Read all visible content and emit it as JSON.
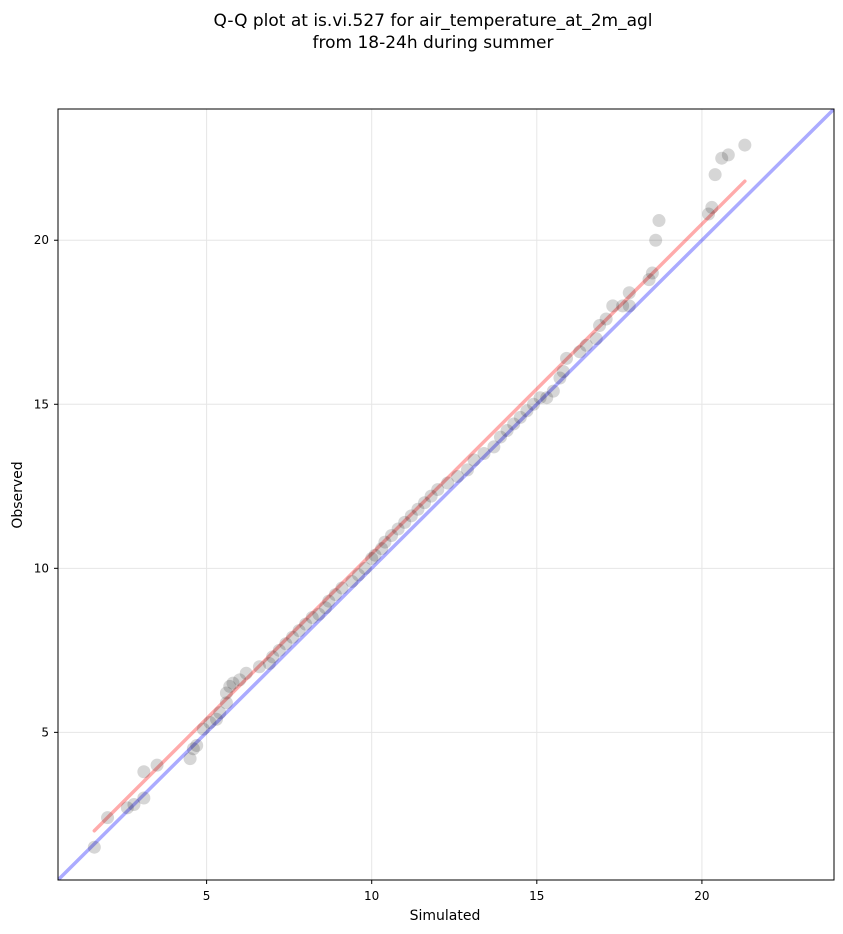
{
  "chart_data": {
    "type": "scatter",
    "title": "Q-Q plot at is.vi.527 for air_temperature_at_2m_agl",
    "subtitle": "from 18-24h during summer",
    "xlabel": "Simulated",
    "ylabel": "Observed",
    "xlim": [
      0.5,
      24.0
    ],
    "ylim": [
      0.5,
      24.0
    ],
    "xticks": [
      5,
      10,
      15,
      20
    ],
    "yticks": [
      5,
      10,
      15,
      20
    ],
    "grid": true,
    "colors": {
      "points": "#000000",
      "identity_line": "#0000ff",
      "fit_line": "#ff0000",
      "grid": "#e6e6e6"
    },
    "lines": [
      {
        "role": "identity",
        "x": [
          0.5,
          24.0
        ],
        "y": [
          0.5,
          24.0
        ]
      },
      {
        "role": "fit",
        "x": [
          1.6,
          21.3
        ],
        "y": [
          2.0,
          21.8
        ]
      }
    ],
    "points": [
      [
        1.6,
        1.5
      ],
      [
        2.0,
        2.4
      ],
      [
        2.6,
        2.7
      ],
      [
        2.8,
        2.8
      ],
      [
        3.1,
        3.0
      ],
      [
        3.1,
        3.8
      ],
      [
        3.5,
        4.0
      ],
      [
        4.5,
        4.2
      ],
      [
        4.6,
        4.5
      ],
      [
        4.7,
        4.6
      ],
      [
        4.9,
        5.1
      ],
      [
        5.1,
        5.3
      ],
      [
        5.3,
        5.4
      ],
      [
        5.4,
        5.6
      ],
      [
        5.6,
        5.9
      ],
      [
        5.6,
        6.2
      ],
      [
        5.7,
        6.4
      ],
      [
        5.8,
        6.5
      ],
      [
        6.0,
        6.6
      ],
      [
        6.2,
        6.8
      ],
      [
        6.6,
        7.0
      ],
      [
        6.9,
        7.1
      ],
      [
        7.0,
        7.3
      ],
      [
        7.2,
        7.5
      ],
      [
        7.4,
        7.7
      ],
      [
        7.6,
        7.9
      ],
      [
        7.8,
        8.1
      ],
      [
        8.0,
        8.3
      ],
      [
        8.2,
        8.5
      ],
      [
        8.4,
        8.6
      ],
      [
        8.6,
        8.8
      ],
      [
        8.7,
        9.0
      ],
      [
        8.9,
        9.2
      ],
      [
        9.1,
        9.4
      ],
      [
        9.4,
        9.6
      ],
      [
        9.6,
        9.8
      ],
      [
        9.8,
        10.0
      ],
      [
        10.0,
        10.3
      ],
      [
        10.1,
        10.4
      ],
      [
        10.3,
        10.6
      ],
      [
        10.4,
        10.8
      ],
      [
        10.6,
        11.0
      ],
      [
        10.8,
        11.2
      ],
      [
        11.0,
        11.4
      ],
      [
        11.2,
        11.6
      ],
      [
        11.4,
        11.8
      ],
      [
        11.6,
        12.0
      ],
      [
        11.8,
        12.2
      ],
      [
        12.0,
        12.4
      ],
      [
        12.3,
        12.6
      ],
      [
        12.6,
        12.8
      ],
      [
        12.9,
        13.0
      ],
      [
        13.1,
        13.3
      ],
      [
        13.4,
        13.5
      ],
      [
        13.7,
        13.7
      ],
      [
        13.9,
        14.0
      ],
      [
        14.1,
        14.2
      ],
      [
        14.3,
        14.4
      ],
      [
        14.5,
        14.6
      ],
      [
        14.7,
        14.8
      ],
      [
        14.9,
        15.0
      ],
      [
        15.1,
        15.2
      ],
      [
        15.3,
        15.2
      ],
      [
        15.5,
        15.4
      ],
      [
        15.7,
        15.8
      ],
      [
        15.8,
        16.0
      ],
      [
        15.9,
        16.4
      ],
      [
        16.3,
        16.6
      ],
      [
        16.5,
        16.8
      ],
      [
        16.8,
        17.0
      ],
      [
        16.9,
        17.4
      ],
      [
        17.1,
        17.6
      ],
      [
        17.3,
        18.0
      ],
      [
        17.6,
        18.0
      ],
      [
        17.8,
        18.0
      ],
      [
        17.8,
        18.4
      ],
      [
        18.4,
        18.8
      ],
      [
        18.5,
        19.0
      ],
      [
        18.6,
        20.0
      ],
      [
        18.7,
        20.6
      ],
      [
        20.2,
        20.8
      ],
      [
        20.3,
        21.0
      ],
      [
        20.4,
        22.0
      ],
      [
        20.6,
        22.5
      ],
      [
        20.8,
        22.6
      ],
      [
        21.3,
        22.9
      ]
    ]
  }
}
